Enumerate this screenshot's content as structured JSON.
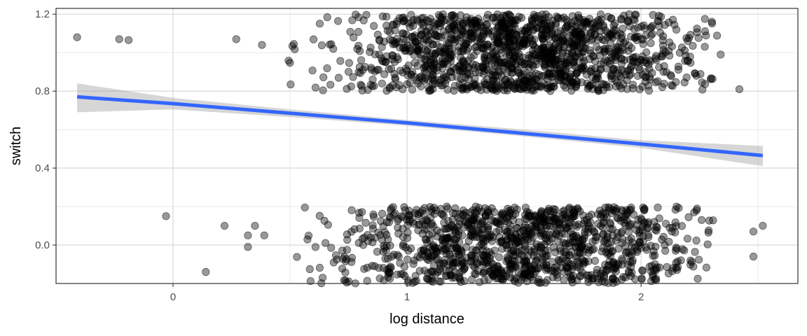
{
  "chart_data": {
    "type": "scatter",
    "title": "",
    "xlabel": "log distance",
    "ylabel": "switch",
    "xlim": [
      -0.5,
      2.67
    ],
    "ylim": [
      -0.2,
      1.23
    ],
    "x_ticks": [
      0,
      1,
      2
    ],
    "x_tick_labels": [
      "0",
      "1",
      "2"
    ],
    "y_ticks": [
      0.0,
      0.4,
      0.8,
      1.2
    ],
    "y_tick_labels": [
      "0.0",
      "0.4",
      "0.8",
      "1.2"
    ],
    "grid": true,
    "legend": "none",
    "point_color": "#000000",
    "point_alpha": 0.4,
    "fit_line_color": "#3366ff",
    "ribbon_color": "#999999",
    "fit": {
      "x": [
        -0.41,
        0.0,
        0.5,
        1.0,
        1.5,
        2.0,
        2.52
      ],
      "y": [
        0.77,
        0.735,
        0.685,
        0.635,
        0.58,
        0.525,
        0.465
      ],
      "lower": [
        0.69,
        0.705,
        0.665,
        0.62,
        0.565,
        0.505,
        0.41
      ],
      "upper": [
        0.84,
        0.765,
        0.705,
        0.65,
        0.6,
        0.545,
        0.515
      ]
    },
    "series": [
      {
        "points_outliers": [
          [
            -0.41,
            1.08
          ],
          [
            -0.23,
            1.07
          ],
          [
            -0.19,
            1.065
          ],
          [
            0.27,
            1.07
          ],
          [
            0.38,
            1.04
          ],
          [
            -0.03,
            0.15
          ],
          [
            0.22,
            0.1
          ],
          [
            0.14,
            -0.14
          ],
          [
            0.32,
            0.05
          ],
          [
            0.32,
            -0.01
          ],
          [
            0.35,
            0.1
          ],
          [
            0.39,
            0.05
          ],
          [
            2.42,
            0.81
          ],
          [
            2.48,
            -0.06
          ],
          [
            2.48,
            0.07
          ],
          [
            2.52,
            0.1
          ],
          [
            2.34,
            0.99
          ]
        ],
        "dense_clusters": [
          {
            "x_range": [
              0.45,
              2.33
            ],
            "y_range": [
              0.8,
              1.2
            ],
            "x_center": 1.5,
            "n_points": 1400
          },
          {
            "x_range": [
              0.5,
              2.33
            ],
            "y_range": [
              -0.2,
              0.2
            ],
            "x_center": 1.5,
            "n_points": 1200
          }
        ]
      }
    ]
  }
}
